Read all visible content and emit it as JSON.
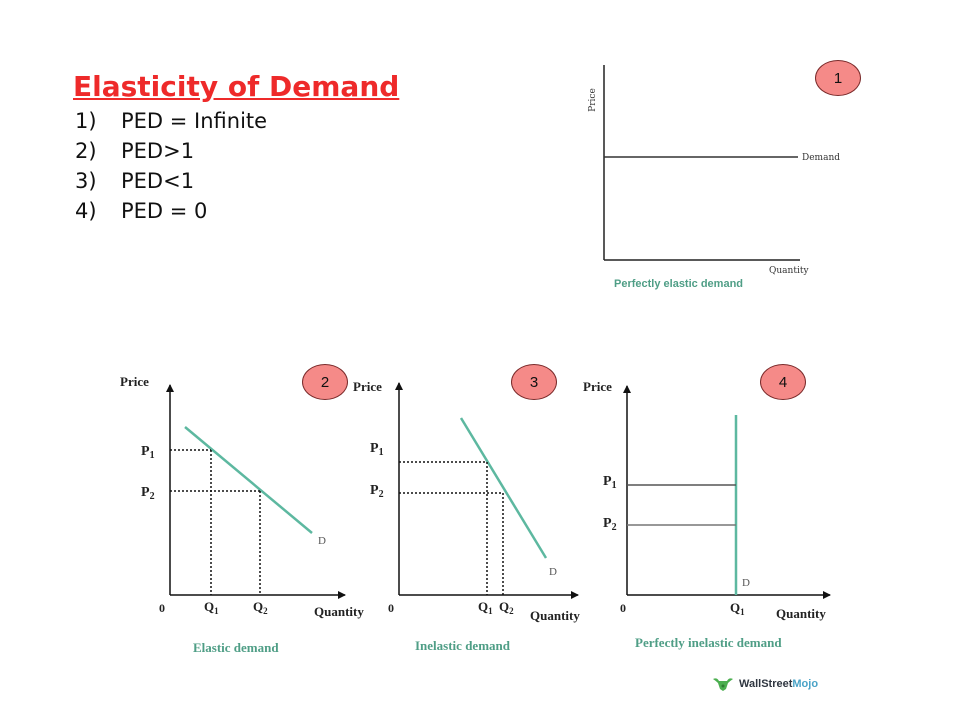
{
  "title": "Elasticity of Demand",
  "list": [
    {
      "num": "1)",
      "text": "PED = Infinite"
    },
    {
      "num": "2)",
      "text": "PED>1"
    },
    {
      "num": "3)",
      "text": "PED<1"
    },
    {
      "num": "4)",
      "text": "PED = 0"
    }
  ],
  "badges": [
    "1",
    "2",
    "3",
    "4"
  ],
  "graph1": {
    "ylabel": "Price",
    "xlabel": "Quantity",
    "curve_label": "Demand",
    "caption": "Perfectly elastic demand"
  },
  "graph2": {
    "ylabel": "Price",
    "xlabel": "Quantity",
    "origin": "0",
    "p1": "P",
    "p2": "P",
    "q1": "Q",
    "q2": "Q",
    "sub1": "1",
    "sub2": "2",
    "curve_label": "D",
    "caption": "Elastic demand"
  },
  "graph3": {
    "ylabel": "Price",
    "xlabel": "Quantity",
    "origin": "0",
    "p1": "P",
    "p2": "P",
    "q1": "Q",
    "q2": "Q",
    "sub1": "1",
    "sub2": "2",
    "curve_label": "D",
    "caption": "Inelastic demand"
  },
  "graph4": {
    "ylabel": "Price",
    "xlabel": "Quantity",
    "origin": "0",
    "p1": "P",
    "p2": "P",
    "q1": "Q",
    "sub1": "1",
    "sub2": "2",
    "curve_label": "D",
    "caption": "Perfectly inelastic demand"
  },
  "logo": {
    "text1": "WallStreet",
    "text2": "Mojo",
    "icon": "bull-icon"
  },
  "colors": {
    "title": "#ee2a2a",
    "badge": "#f58a88",
    "curve": "#5db8a0",
    "caption": "#4f9e86"
  }
}
